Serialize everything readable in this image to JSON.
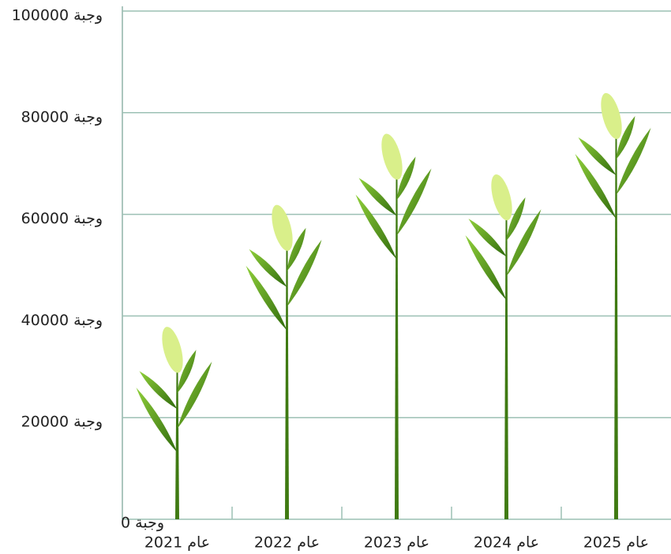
{
  "chart_data": {
    "type": "pictograph",
    "categories": [
      "2021 عام",
      "2022 عام",
      "2023 عام",
      "2024 عام",
      "2025 عام"
    ],
    "values": [
      38000,
      62000,
      76000,
      68000,
      84000
    ],
    "color": "#3f7a12",
    "grain_color": "#d9ef8a",
    "ylim": [
      0,
      100000
    ],
    "yticks": [
      {
        "value": 0,
        "label": "0 وجبة"
      },
      {
        "value": 20000,
        "label": "20000 وجبة"
      },
      {
        "value": 40000,
        "label": "40000 وجبة"
      },
      {
        "value": 60000,
        "label": "60000 وجبة"
      },
      {
        "value": 80000,
        "label": "80000 وجبة"
      },
      {
        "value": 100000,
        "label": "100000 وجبة"
      }
    ],
    "grid": true
  }
}
